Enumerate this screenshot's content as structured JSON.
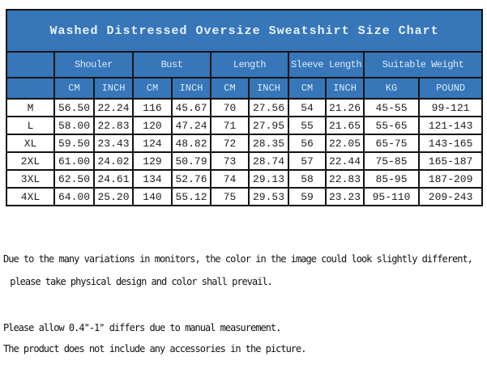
{
  "title": "Washed Distressed Oversize Sweatshirt Size Chart",
  "table": {
    "groups": [
      {
        "label": "Shouler",
        "span": 2
      },
      {
        "label": "Bust",
        "span": 2
      },
      {
        "label": "Length",
        "span": 2
      },
      {
        "label": "Sleeve Length",
        "span": 2
      },
      {
        "label": "Suitable Weight",
        "span": 2
      }
    ],
    "units": [
      "CM",
      "INCH",
      "CM",
      "INCH",
      "CM",
      "INCH",
      "CM",
      "INCH",
      "KG",
      "POUND"
    ],
    "rows": [
      {
        "size": "M",
        "values": [
          "56.50",
          "22.24",
          "116",
          "45.67",
          "70",
          "27.56",
          "54",
          "21.26",
          "45-55",
          "99-121"
        ]
      },
      {
        "size": "L",
        "values": [
          "58.00",
          "22.83",
          "120",
          "47.24",
          "71",
          "27.95",
          "55",
          "21.65",
          "55-65",
          "121-143"
        ]
      },
      {
        "size": "XL",
        "values": [
          "59.50",
          "23.43",
          "124",
          "48.82",
          "72",
          "28.35",
          "56",
          "22.05",
          "65-75",
          "143-165"
        ]
      },
      {
        "size": "2XL",
        "values": [
          "61.00",
          "24.02",
          "129",
          "50.79",
          "73",
          "28.74",
          "57",
          "22.44",
          "75-85",
          "165-187"
        ]
      },
      {
        "size": "3XL",
        "values": [
          "62.50",
          "24.61",
          "134",
          "52.76",
          "74",
          "29.13",
          "58",
          "22.83",
          "85-95",
          "187-209"
        ]
      },
      {
        "size": "4XL",
        "values": [
          "64.00",
          "25.20",
          "140",
          "55.12",
          "75",
          "29.53",
          "59",
          "23.23",
          "95-110",
          "209-243"
        ]
      }
    ]
  },
  "notes": [
    "Due to the many variations in monitors, the color in the image could look slightly different,",
    " please take physical design and color shall prevail.",
    "Please allow 0.4\"-1\" differs due to manual measurement.",
    "The product does not include any accessories in the picture."
  ],
  "colors": {
    "header_bg": "#3676b9",
    "header_text": "#dcebf7",
    "title_text": "#e8f2fb",
    "border": "#141414",
    "cell_text": "#1c1c1c",
    "page_bg": "#ffffff"
  }
}
